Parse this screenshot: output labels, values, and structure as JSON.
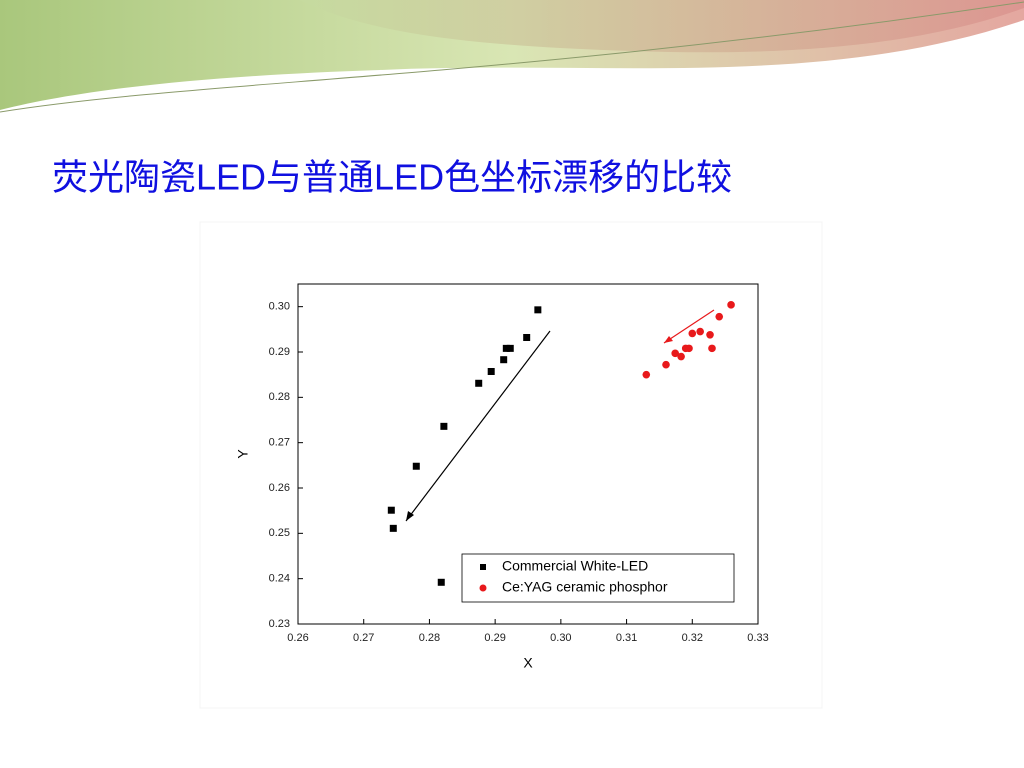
{
  "chart_data": {
    "type": "scatter",
    "title": "荧光陶瓷LED与普通LED色坐标漂移的比较",
    "x_label": "X",
    "y_label": "Y",
    "xlim": [
      0.26,
      0.33
    ],
    "ylim": [
      0.23,
      0.305
    ],
    "xticks": [
      0.26,
      0.27,
      0.28,
      0.29,
      {
        "value": 0.3,
        "label": "0.30"
      },
      0.31,
      0.32,
      0.33
    ],
    "yticks": [
      0.23,
      0.24,
      0.25,
      0.26,
      0.27,
      0.28,
      0.29,
      {
        "value": 0.3,
        "label": "0.30"
      }
    ],
    "grid": false,
    "legend": "lower right",
    "series": [
      {
        "name": "Commercial White-LED",
        "color": "#000000",
        "marker": "square",
        "x": [
          0.2742,
          0.2745,
          0.278,
          0.2822,
          0.2818,
          0.2875,
          0.2894,
          0.2913,
          0.2917,
          0.2923,
          0.2948,
          0.2965
        ],
        "values": [
          0.2551,
          0.2511,
          0.2648,
          0.2736,
          0.2392,
          0.2831,
          0.2857,
          0.2883,
          0.2908,
          0.2908,
          0.2932,
          0.2993
        ]
      },
      {
        "name": "Ce:YAG ceramic phosphor",
        "color": "#e8191b",
        "marker": "circle",
        "x": [
          0.313,
          0.316,
          0.3174,
          0.3183,
          0.319,
          0.3195,
          0.32,
          0.3212,
          0.3227,
          0.323,
          0.3241,
          0.3259
        ],
        "values": [
          0.285,
          0.2872,
          0.2897,
          0.289,
          0.2908,
          0.2908,
          0.2941,
          0.2945,
          0.2938,
          0.2908,
          0.2978,
          0.3004
        ]
      }
    ]
  }
}
